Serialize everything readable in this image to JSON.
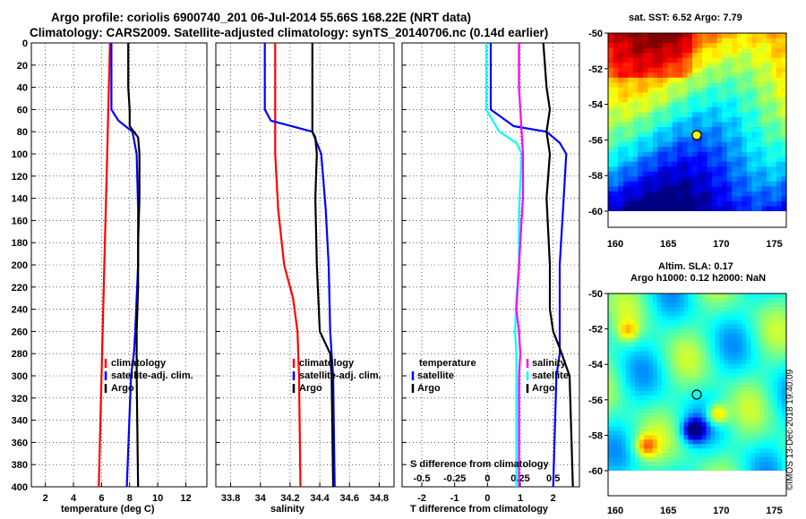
{
  "header": {
    "title_line1": "Argo profile: coriolis 6900740_201 06-Jul-2014 55.66S 168.22E (NRT data)",
    "title_line2": "Climatology: CARS2009. Satellite-adjusted climatology: synTS_20140706.nc (0.14d earlier)"
  },
  "colors": {
    "climatology": "#ff0000",
    "satellite": "#0000ff",
    "argo": "#000000",
    "s_diff": "#ff00ff",
    "s_sat": "#00ffff"
  },
  "chart_data": [
    {
      "type": "line",
      "name": "temperature",
      "xlabel": "temperature (deg C)",
      "ylabel": "",
      "xlim": [
        1,
        13.5
      ],
      "ylim": [
        400,
        0
      ],
      "xticks": [
        "2",
        "4",
        "6",
        "8",
        "10",
        "12"
      ],
      "xtick_values": [
        2,
        4,
        6,
        8,
        10,
        12
      ],
      "yticks": [
        "0",
        "20",
        "40",
        "60",
        "80",
        "100",
        "120",
        "140",
        "160",
        "180",
        "200",
        "220",
        "240",
        "260",
        "280",
        "300",
        "320",
        "340",
        "360",
        "380",
        "400"
      ],
      "legend": [
        "climatology",
        "satellite-adj. clim.",
        "Argo"
      ],
      "legend_position": "lower-right",
      "series": [
        {
          "name": "climatology",
          "color": "#ff0000",
          "depth": [
            0,
            100,
            200,
            300,
            400
          ],
          "values": [
            6.6,
            6.4,
            6.2,
            6.0,
            5.8
          ]
        },
        {
          "name": "satellite-adj. clim.",
          "color": "#0000ff",
          "depth": [
            0,
            20,
            40,
            60,
            70,
            80,
            100,
            150,
            200,
            260,
            280,
            300,
            400
          ],
          "values": [
            6.7,
            6.7,
            6.7,
            6.7,
            7.2,
            8.2,
            8.5,
            8.6,
            8.6,
            8.4,
            8.3,
            8.1,
            7.8
          ]
        },
        {
          "name": "Argo",
          "color": "#000000",
          "depth": [
            0,
            20,
            40,
            60,
            75,
            85,
            100,
            140,
            180,
            220,
            260,
            280,
            300,
            400
          ],
          "values": [
            7.9,
            7.9,
            7.9,
            8.0,
            8.0,
            8.6,
            8.7,
            8.7,
            8.6,
            8.6,
            8.5,
            8.5,
            8.5,
            8.6
          ]
        }
      ]
    },
    {
      "type": "line",
      "name": "salinity",
      "xlabel": "salinity",
      "ylabel": "",
      "xlim": [
        33.7,
        34.9
      ],
      "ylim": [
        400,
        0
      ],
      "xticks": [
        "33.8",
        "34",
        "34.2",
        "34.4",
        "34.6",
        "34.8"
      ],
      "xtick_values": [
        33.8,
        34.0,
        34.2,
        34.4,
        34.6,
        34.8
      ],
      "legend": [
        "climatology",
        "satellite-adj. clim.",
        "Argo"
      ],
      "legend_position": "lower-right",
      "series": [
        {
          "name": "climatology",
          "color": "#ff0000",
          "depth": [
            0,
            100,
            150,
            200,
            230,
            260,
            300,
            400
          ],
          "values": [
            34.1,
            34.1,
            34.12,
            34.16,
            34.22,
            34.25,
            34.26,
            34.27
          ]
        },
        {
          "name": "satellite-adj. clim.",
          "color": "#0000ff",
          "depth": [
            0,
            20,
            60,
            70,
            80,
            100,
            150,
            200,
            260,
            280,
            300,
            400
          ],
          "values": [
            34.03,
            34.03,
            34.03,
            34.07,
            34.35,
            34.41,
            34.44,
            34.46,
            34.47,
            34.48,
            34.49,
            34.5
          ]
        },
        {
          "name": "Argo",
          "color": "#000000",
          "depth": [
            0,
            20,
            60,
            80,
            85,
            100,
            140,
            200,
            260,
            280,
            300,
            400
          ],
          "values": [
            34.35,
            34.35,
            34.35,
            34.35,
            34.37,
            34.38,
            34.37,
            34.38,
            34.4,
            34.47,
            34.48,
            34.49
          ]
        }
      ]
    },
    {
      "type": "line",
      "name": "difference",
      "xlabel": "T difference from climatology",
      "top_xlabel": "S difference from climatology",
      "xlim": [
        -2.6,
        2.8
      ],
      "ylim": [
        400,
        0
      ],
      "xticks": [
        "-2",
        "-1",
        "0",
        "1",
        "2"
      ],
      "xtick_values": [
        -2,
        -1,
        0,
        1,
        2
      ],
      "top_xticks": [
        "-0.5",
        "-0.25",
        "0",
        "0.25",
        "0.5"
      ],
      "top_xtick_values": [
        -0.5,
        -0.25,
        0,
        0.25,
        0.5
      ],
      "legend_left": [
        "temperature",
        "satellite",
        "Argo"
      ],
      "legend_right": [
        "salinity",
        "satellite",
        "Argo"
      ],
      "series": [
        {
          "name": "T satellite",
          "color": "#0000ff",
          "depth": [
            0,
            60,
            75,
            80,
            90,
            100,
            150,
            200,
            260,
            280,
            300,
            400
          ],
          "values": [
            0.1,
            0.1,
            0.8,
            1.8,
            2.2,
            2.4,
            2.3,
            2.2,
            2.2,
            2.2,
            2.1,
            2.0
          ]
        },
        {
          "name": "T Argo",
          "color": "#000000",
          "depth": [
            0,
            40,
            60,
            80,
            100,
            140,
            200,
            240,
            260,
            275,
            300,
            400
          ],
          "values": [
            1.7,
            1.8,
            1.9,
            1.8,
            1.9,
            1.8,
            1.9,
            1.9,
            2.0,
            2.2,
            2.5,
            2.6
          ]
        },
        {
          "name": "S satellite",
          "color": "#00ffff",
          "depth": [
            0,
            20,
            60,
            80,
            90,
            100,
            150,
            200,
            230,
            260,
            280,
            300,
            400
          ],
          "values": [
            -0.01,
            -0.01,
            -0.01,
            0.09,
            0.22,
            0.26,
            0.24,
            0.24,
            0.22,
            0.21,
            0.22,
            0.22,
            0.22
          ]
        },
        {
          "name": "S Argo",
          "color": "#ff00ff",
          "depth": [
            0,
            40,
            80,
            100,
            140,
            180,
            220,
            240,
            260,
            280,
            300,
            400
          ],
          "values": [
            0.24,
            0.24,
            0.26,
            0.27,
            0.27,
            0.25,
            0.23,
            0.22,
            0.24,
            0.25,
            0.24,
            0.24
          ]
        }
      ]
    }
  ],
  "maps": {
    "sst": {
      "title": "sat. SST: 6.52 Argo: 7.79",
      "lat_ticks": [
        "-50",
        "-52",
        "-54",
        "-56",
        "-58",
        "-60"
      ],
      "lon_ticks": [
        "160",
        "165",
        "170",
        "175"
      ]
    },
    "sla": {
      "title_line1": "Altim. SLA: 0.17",
      "title_line2": "Argo h1000: 0.12 h2000: NaN",
      "lat_ticks": [
        "-50",
        "-52",
        "-54",
        "-56",
        "-58",
        "-60"
      ],
      "lon_ticks": [
        "160",
        "165",
        "170",
        "175"
      ]
    }
  },
  "footer": {
    "credit": "©IMOS 13-Dec-2018 19:40:09"
  }
}
